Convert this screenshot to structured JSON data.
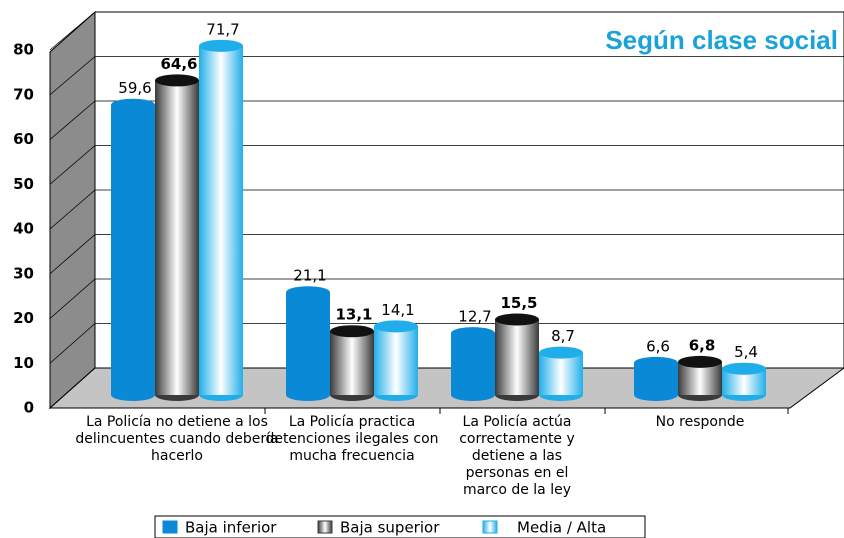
{
  "chart_data": {
    "type": "bar",
    "title": "Según clase social",
    "categories": [
      "La Policía no detiene a los delincuentes cuando debería hacerlo",
      "La Policía practica detenciones ilegales con mucha frecuencia",
      "La Policía actúa correctamente y detiene a las personas en el marco de la ley",
      "No responde"
    ],
    "series": [
      {
        "name": "Baja inferior",
        "color": "#0a8ad6",
        "values": [
          59.6,
          21.1,
          12.7,
          6.6
        ],
        "value_labels": [
          "59,6",
          "21,1",
          "12,7",
          "6,6"
        ]
      },
      {
        "name": "Baja superior",
        "color": "#3a3a3a",
        "values": [
          64.6,
          13.1,
          15.5,
          6.8
        ],
        "value_labels": [
          "64,6",
          "13,1",
          "15,5",
          "6,8"
        ]
      },
      {
        "name": "Media / Alta",
        "color": "#20aeea",
        "values": [
          71.7,
          14.1,
          8.7,
          5.4
        ],
        "value_labels": [
          "71,7",
          "14,1",
          "8,7",
          "5,4"
        ]
      }
    ],
    "ylim": [
      0,
      80
    ],
    "yticks": [
      0,
      10,
      20,
      30,
      40,
      50,
      60,
      70,
      80
    ],
    "grid": true,
    "legend": "bottom"
  }
}
